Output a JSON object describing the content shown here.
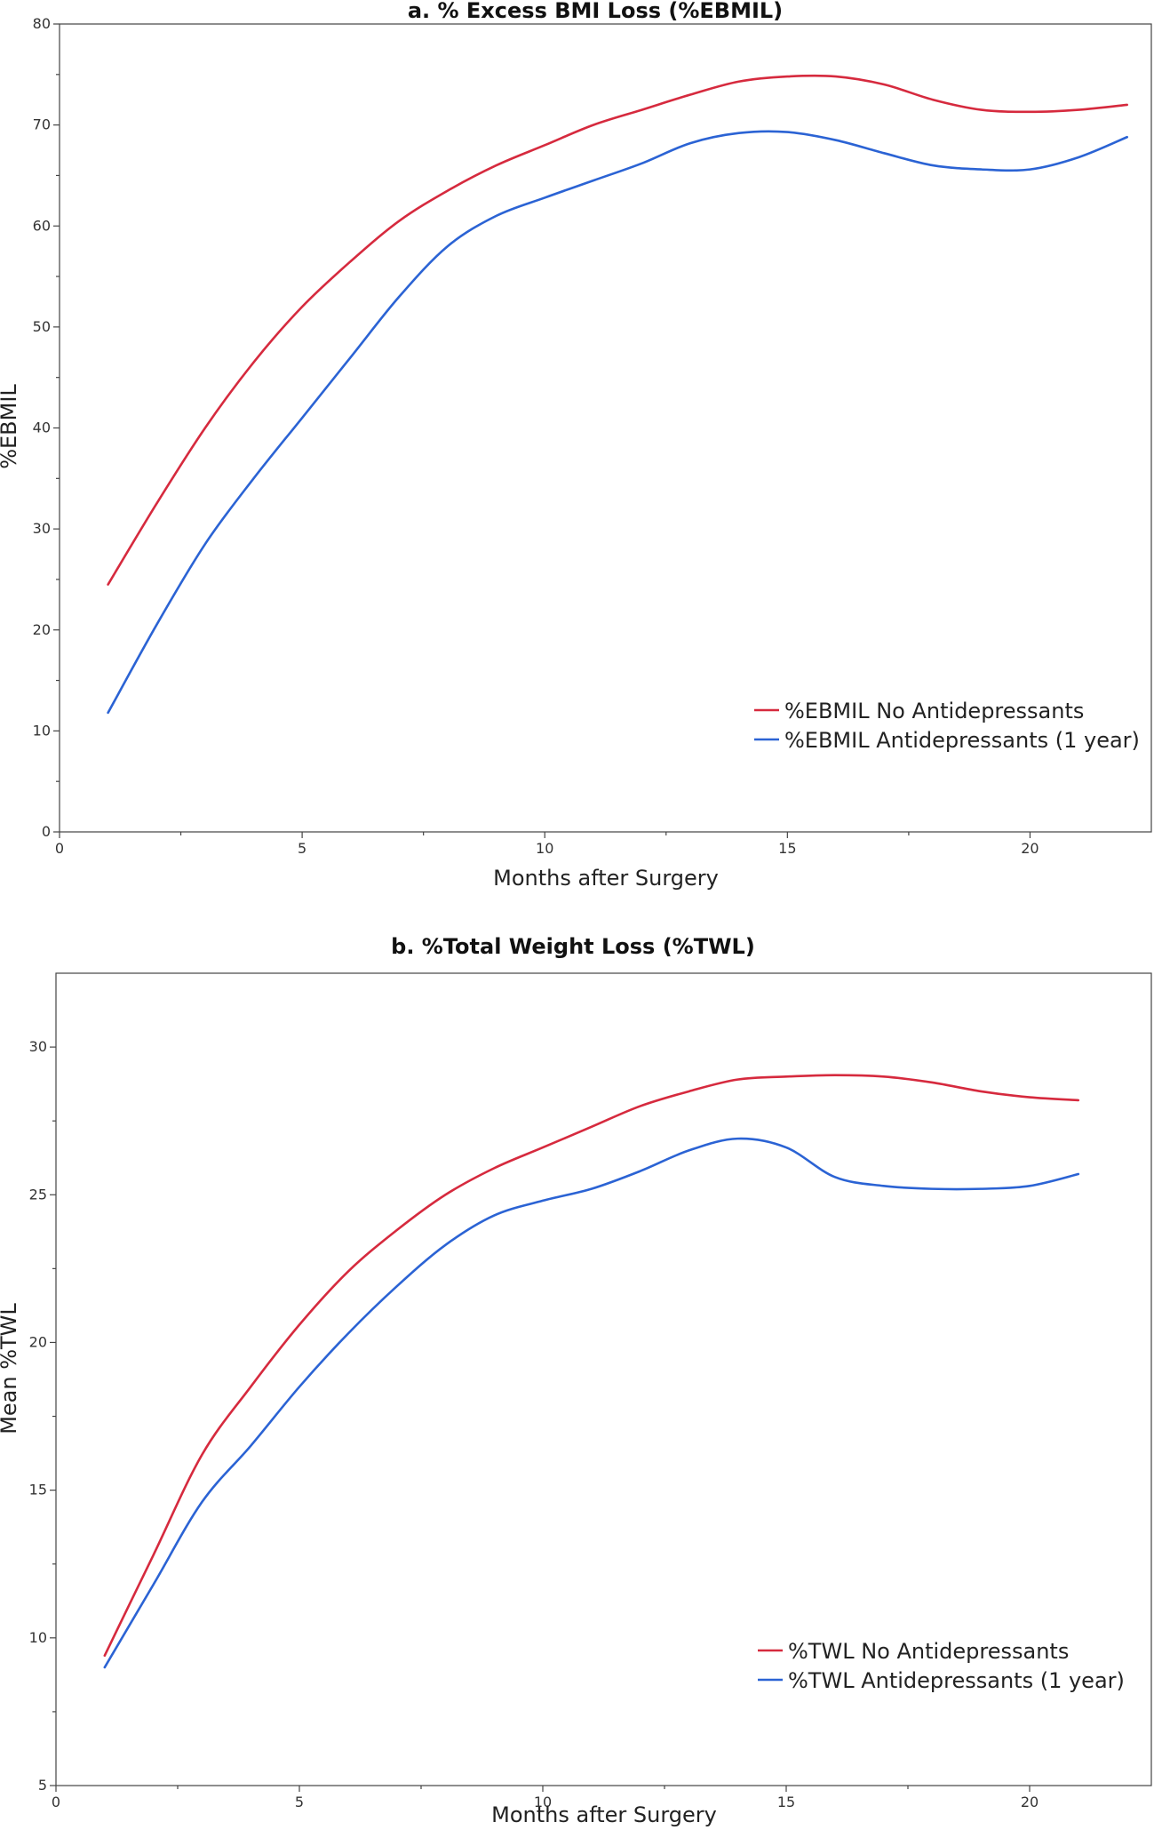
{
  "chart_data": [
    {
      "type": "line",
      "title": "a. % Excess BMI Loss (%EBMIL)",
      "xlabel": "Months after Surgery",
      "ylabel": "%EBMIL",
      "xlim": [
        0,
        22.5
      ],
      "ylim": [
        0,
        80
      ],
      "xticks": [
        0,
        5,
        10,
        15,
        20
      ],
      "yticks": [
        0,
        10,
        20,
        30,
        40,
        50,
        60,
        70,
        80
      ],
      "grid": false,
      "legend_position": "lower-right",
      "series": [
        {
          "name": "%EBMIL No Antidepressants",
          "color": "#d62a3e",
          "x": [
            1,
            2,
            3,
            4,
            5,
            6,
            7,
            8,
            9,
            10,
            11,
            12,
            13,
            14,
            15,
            16,
            17,
            18,
            19,
            20,
            21,
            22
          ],
          "y": [
            24.5,
            32.5,
            40.0,
            46.5,
            52.0,
            56.5,
            60.5,
            63.5,
            66.0,
            68.0,
            70.0,
            71.5,
            73.0,
            74.3,
            74.8,
            74.8,
            74.0,
            72.5,
            71.5,
            71.3,
            71.5,
            72.0
          ]
        },
        {
          "name": "%EBMIL Antidepressants (1 year)",
          "color": "#2b63d4",
          "x": [
            1,
            2,
            3,
            4,
            5,
            6,
            7,
            8,
            9,
            10,
            11,
            12,
            13,
            14,
            15,
            16,
            17,
            18,
            19,
            20,
            21,
            22
          ],
          "y": [
            11.8,
            20.5,
            28.5,
            35.0,
            41.0,
            47.0,
            53.0,
            58.0,
            61.0,
            62.8,
            64.5,
            66.2,
            68.2,
            69.2,
            69.3,
            68.5,
            67.2,
            66.0,
            65.6,
            65.6,
            66.8,
            68.8
          ]
        }
      ]
    },
    {
      "type": "line",
      "title": "b. %Total Weight Loss (%TWL)",
      "xlabel": "Months after Surgery",
      "ylabel": "Mean %TWL",
      "xlim": [
        0,
        22.5
      ],
      "ylim": [
        5,
        32.5
      ],
      "xticks": [
        0,
        5,
        10,
        15,
        20
      ],
      "yticks": [
        5,
        10,
        15,
        20,
        25,
        30
      ],
      "grid": false,
      "legend_position": "lower-right",
      "series": [
        {
          "name": "%TWL No Antidepressants",
          "color": "#d62a3e",
          "x": [
            1,
            2,
            3,
            4,
            5,
            6,
            7,
            8,
            9,
            10,
            11,
            12,
            13,
            14,
            15,
            16,
            17,
            18,
            19,
            20,
            21
          ],
          "y": [
            9.4,
            12.8,
            16.2,
            18.5,
            20.6,
            22.4,
            23.8,
            25.0,
            25.9,
            26.6,
            27.3,
            28.0,
            28.5,
            28.9,
            29.0,
            29.05,
            29.0,
            28.8,
            28.5,
            28.3,
            28.2
          ]
        },
        {
          "name": "%TWL Antidepressants (1 year)",
          "color": "#2b63d4",
          "x": [
            1,
            2,
            3,
            4,
            5,
            6,
            7,
            8,
            9,
            10,
            11,
            12,
            13,
            14,
            15,
            16,
            17,
            18,
            19,
            20,
            21
          ],
          "y": [
            9.0,
            11.8,
            14.6,
            16.5,
            18.5,
            20.3,
            21.9,
            23.3,
            24.3,
            24.8,
            25.2,
            25.8,
            26.5,
            26.9,
            26.6,
            25.6,
            25.3,
            25.2,
            25.2,
            25.3,
            25.7
          ]
        }
      ]
    }
  ]
}
